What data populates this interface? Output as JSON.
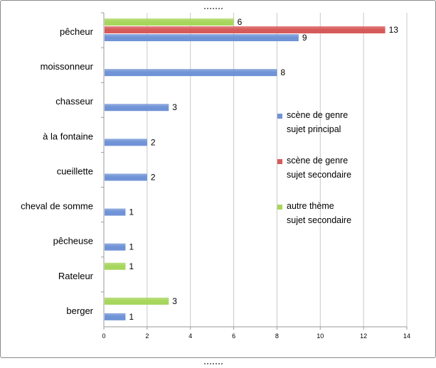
{
  "chart_data": {
    "type": "bar",
    "orientation": "horizontal",
    "categories": [
      "pêcheur",
      "moissonneur",
      "chasseur",
      "à la fontaine",
      "cueillette",
      "cheval de somme",
      "pêcheuse",
      "Rateleur",
      "berger"
    ],
    "series": [
      {
        "name": "scène de genre sujet principal",
        "legend_lines": [
          "scène de genre",
          "sujet principal"
        ],
        "color": "#6f93d6",
        "values": [
          9,
          8,
          3,
          2,
          2,
          1,
          1,
          null,
          1
        ]
      },
      {
        "name": "scène de genre sujet secondaire",
        "legend_lines": [
          "scène de genre",
          "sujet secondaire"
        ],
        "color": "#d75a5a",
        "values": [
          13,
          null,
          null,
          null,
          null,
          null,
          null,
          null,
          null
        ]
      },
      {
        "name": "autre thème sujet secondaire",
        "legend_lines": [
          "autre thème",
          "sujet secondaire"
        ],
        "color": "#a7d65c",
        "values": [
          6,
          null,
          null,
          null,
          null,
          null,
          null,
          1,
          3
        ]
      }
    ],
    "xlim": [
      0,
      14
    ],
    "x_ticks": [
      0,
      2,
      4,
      6,
      8,
      10,
      12,
      14
    ],
    "grid": true,
    "legend_position": "right",
    "title": "",
    "xlabel": "",
    "ylabel": ""
  }
}
